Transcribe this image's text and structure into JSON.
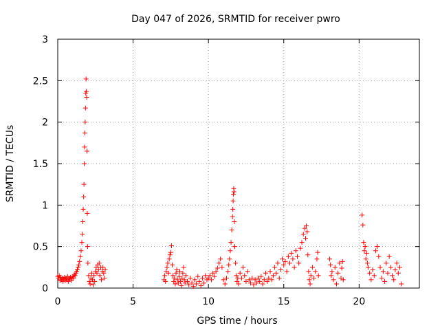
{
  "chart_data": {
    "type": "scatter",
    "title": "Day 047 of 2026, SRMTID for receiver pwro",
    "xlabel": "GPS time / hours",
    "ylabel": "SRMTID / TECUs",
    "xlim": [
      0,
      24
    ],
    "ylim": [
      0,
      3
    ],
    "xticks": [
      "0",
      "5",
      "10",
      "15",
      "20"
    ],
    "yticks": [
      "0",
      "0.5",
      "1",
      "1.5",
      "2",
      "2.5",
      "3"
    ],
    "grid": true,
    "marker": "+",
    "series": [
      {
        "name": "pwro",
        "color": "#ff0000",
        "points": [
          [
            0.0,
            0.14
          ],
          [
            0.05,
            0.12
          ],
          [
            0.1,
            0.15
          ],
          [
            0.15,
            0.09
          ],
          [
            0.2,
            0.13
          ],
          [
            0.25,
            0.1
          ],
          [
            0.3,
            0.12
          ],
          [
            0.35,
            0.08
          ],
          [
            0.4,
            0.11
          ],
          [
            0.45,
            0.13
          ],
          [
            0.5,
            0.09
          ],
          [
            0.55,
            0.12
          ],
          [
            0.6,
            0.1
          ],
          [
            0.65,
            0.14
          ],
          [
            0.7,
            0.08
          ],
          [
            0.75,
            0.12
          ],
          [
            0.8,
            0.11
          ],
          [
            0.85,
            0.13
          ],
          [
            0.9,
            0.09
          ],
          [
            0.95,
            0.12
          ],
          [
            1.0,
            0.14
          ],
          [
            1.05,
            0.12
          ],
          [
            1.1,
            0.16
          ],
          [
            1.15,
            0.15
          ],
          [
            1.2,
            0.18
          ],
          [
            1.25,
            0.2
          ],
          [
            1.3,
            0.22
          ],
          [
            1.35,
            0.25
          ],
          [
            1.4,
            0.28
          ],
          [
            1.45,
            0.32
          ],
          [
            1.5,
            0.38
          ],
          [
            1.55,
            0.45
          ],
          [
            1.6,
            0.55
          ],
          [
            1.63,
            0.65
          ],
          [
            1.66,
            0.8
          ],
          [
            1.69,
            0.95
          ],
          [
            1.72,
            1.1
          ],
          [
            1.74,
            1.25
          ],
          [
            1.76,
            1.5
          ],
          [
            1.78,
            1.7
          ],
          [
            1.8,
            1.87
          ],
          [
            1.82,
            2.0
          ],
          [
            1.84,
            2.17
          ],
          [
            1.86,
            2.35
          ],
          [
            1.88,
            2.52
          ],
          [
            1.9,
            2.37
          ],
          [
            1.92,
            2.3
          ],
          [
            1.94,
            1.65
          ],
          [
            1.96,
            0.9
          ],
          [
            1.98,
            0.5
          ],
          [
            2.0,
            0.3
          ],
          [
            2.05,
            0.15
          ],
          [
            2.1,
            0.08
          ],
          [
            2.15,
            0.05
          ],
          [
            2.2,
            0.12
          ],
          [
            2.25,
            0.18
          ],
          [
            2.3,
            0.1
          ],
          [
            2.35,
            0.04
          ],
          [
            2.4,
            0.15
          ],
          [
            2.45,
            0.08
          ],
          [
            2.5,
            0.2
          ],
          [
            2.55,
            0.25
          ],
          [
            2.6,
            0.18
          ],
          [
            2.65,
            0.28
          ],
          [
            2.7,
            0.22
          ],
          [
            2.75,
            0.3
          ],
          [
            2.8,
            0.15
          ],
          [
            2.85,
            0.25
          ],
          [
            2.9,
            0.1
          ],
          [
            2.95,
            0.2
          ],
          [
            3.0,
            0.25
          ],
          [
            3.05,
            0.18
          ],
          [
            3.1,
            0.12
          ],
          [
            3.15,
            0.22
          ],
          [
            7.05,
            0.1
          ],
          [
            7.1,
            0.15
          ],
          [
            7.15,
            0.08
          ],
          [
            7.2,
            0.2
          ],
          [
            7.25,
            0.25
          ],
          [
            7.3,
            0.3
          ],
          [
            7.35,
            0.18
          ],
          [
            7.4,
            0.35
          ],
          [
            7.45,
            0.4
          ],
          [
            7.5,
            0.43
          ],
          [
            7.55,
            0.51
          ],
          [
            7.6,
            0.28
          ],
          [
            7.65,
            0.15
          ],
          [
            7.7,
            0.08
          ],
          [
            7.75,
            0.12
          ],
          [
            7.8,
            0.05
          ],
          [
            7.85,
            0.18
          ],
          [
            7.9,
            0.22
          ],
          [
            7.95,
            0.1
          ],
          [
            8.0,
            0.06
          ],
          [
            8.05,
            0.14
          ],
          [
            8.1,
            0.2
          ],
          [
            8.15,
            0.08
          ],
          [
            8.2,
            0.03
          ],
          [
            8.25,
            0.12
          ],
          [
            8.3,
            0.18
          ],
          [
            8.35,
            0.25
          ],
          [
            8.4,
            0.1
          ],
          [
            8.45,
            0.06
          ],
          [
            8.5,
            0.15
          ],
          [
            8.6,
            0.08
          ],
          [
            8.7,
            0.04
          ],
          [
            8.8,
            0.12
          ],
          [
            8.9,
            0.06
          ],
          [
            9.0,
            0.02
          ],
          [
            9.1,
            0.1
          ],
          [
            9.2,
            0.05
          ],
          [
            9.3,
            0.14
          ],
          [
            9.4,
            0.08
          ],
          [
            9.5,
            0.03
          ],
          [
            9.6,
            0.12
          ],
          [
            9.7,
            0.06
          ],
          [
            9.8,
            0.15
          ],
          [
            9.9,
            0.1
          ],
          [
            10.0,
            0.12
          ],
          [
            10.1,
            0.15
          ],
          [
            10.2,
            0.1
          ],
          [
            10.3,
            0.18
          ],
          [
            10.4,
            0.14
          ],
          [
            10.5,
            0.2
          ],
          [
            10.6,
            0.24
          ],
          [
            10.7,
            0.3
          ],
          [
            10.8,
            0.35
          ],
          [
            10.9,
            0.25
          ],
          [
            11.0,
            0.1
          ],
          [
            11.1,
            0.05
          ],
          [
            11.2,
            0.12
          ],
          [
            11.3,
            0.2
          ],
          [
            11.35,
            0.28
          ],
          [
            11.4,
            0.35
          ],
          [
            11.45,
            0.45
          ],
          [
            11.5,
            0.55
          ],
          [
            11.55,
            0.7
          ],
          [
            11.6,
            0.86
          ],
          [
            11.62,
            0.95
          ],
          [
            11.64,
            1.05
          ],
          [
            11.66,
            1.13
          ],
          [
            11.68,
            1.2
          ],
          [
            11.7,
            1.16
          ],
          [
            11.72,
            0.8
          ],
          [
            11.75,
            0.5
          ],
          [
            11.8,
            0.3
          ],
          [
            11.85,
            0.15
          ],
          [
            11.9,
            0.08
          ],
          [
            11.95,
            0.12
          ],
          [
            12.0,
            0.05
          ],
          [
            12.1,
            0.18
          ],
          [
            12.2,
            0.12
          ],
          [
            12.3,
            0.25
          ],
          [
            12.4,
            0.15
          ],
          [
            12.5,
            0.08
          ],
          [
            12.6,
            0.2
          ],
          [
            12.7,
            0.1
          ],
          [
            12.8,
            0.06
          ],
          [
            12.9,
            0.12
          ],
          [
            13.0,
            0.04
          ],
          [
            13.1,
            0.1
          ],
          [
            13.2,
            0.06
          ],
          [
            13.3,
            0.12
          ],
          [
            13.4,
            0.08
          ],
          [
            13.5,
            0.14
          ],
          [
            13.6,
            0.05
          ],
          [
            13.7,
            0.1
          ],
          [
            13.8,
            0.18
          ],
          [
            13.9,
            0.08
          ],
          [
            14.0,
            0.12
          ],
          [
            14.1,
            0.2
          ],
          [
            14.2,
            0.1
          ],
          [
            14.3,
            0.15
          ],
          [
            14.4,
            0.25
          ],
          [
            14.5,
            0.18
          ],
          [
            14.6,
            0.3
          ],
          [
            14.7,
            0.12
          ],
          [
            14.8,
            0.22
          ],
          [
            14.9,
            0.35
          ],
          [
            15.0,
            0.28
          ],
          [
            15.1,
            0.32
          ],
          [
            15.2,
            0.2
          ],
          [
            15.3,
            0.38
          ],
          [
            15.4,
            0.3
          ],
          [
            15.5,
            0.42
          ],
          [
            15.6,
            0.35
          ],
          [
            15.7,
            0.25
          ],
          [
            15.8,
            0.45
          ],
          [
            15.9,
            0.38
          ],
          [
            16.0,
            0.3
          ],
          [
            16.1,
            0.48
          ],
          [
            16.2,
            0.55
          ],
          [
            16.3,
            0.65
          ],
          [
            16.4,
            0.72
          ],
          [
            16.45,
            0.6
          ],
          [
            16.5,
            0.75
          ],
          [
            16.55,
            0.68
          ],
          [
            16.6,
            0.4
          ],
          [
            16.65,
            0.2
          ],
          [
            16.7,
            0.1
          ],
          [
            16.75,
            0.05
          ],
          [
            16.8,
            0.15
          ],
          [
            16.9,
            0.25
          ],
          [
            17.0,
            0.12
          ],
          [
            17.1,
            0.2
          ],
          [
            17.2,
            0.35
          ],
          [
            17.25,
            0.43
          ],
          [
            17.3,
            0.15
          ],
          [
            18.05,
            0.35
          ],
          [
            18.1,
            0.28
          ],
          [
            18.15,
            0.15
          ],
          [
            18.2,
            0.2
          ],
          [
            18.3,
            0.1
          ],
          [
            18.4,
            0.25
          ],
          [
            18.5,
            0.05
          ],
          [
            18.6,
            0.18
          ],
          [
            18.7,
            0.3
          ],
          [
            18.8,
            0.12
          ],
          [
            18.85,
            0.24
          ],
          [
            18.9,
            0.32
          ],
          [
            18.95,
            0.1
          ],
          [
            20.2,
            0.88
          ],
          [
            20.25,
            0.76
          ],
          [
            20.3,
            0.55
          ],
          [
            20.35,
            0.45
          ],
          [
            20.4,
            0.5
          ],
          [
            20.45,
            0.35
          ],
          [
            20.5,
            0.42
          ],
          [
            20.55,
            0.3
          ],
          [
            20.6,
            0.25
          ],
          [
            20.7,
            0.18
          ],
          [
            20.8,
            0.1
          ],
          [
            20.9,
            0.22
          ],
          [
            21.0,
            0.15
          ],
          [
            21.1,
            0.45
          ],
          [
            21.2,
            0.5
          ],
          [
            21.3,
            0.38
          ],
          [
            21.4,
            0.25
          ],
          [
            21.5,
            0.12
          ],
          [
            21.6,
            0.2
          ],
          [
            21.7,
            0.08
          ],
          [
            21.8,
            0.3
          ],
          [
            21.9,
            0.18
          ],
          [
            22.0,
            0.38
          ],
          [
            22.1,
            0.25
          ],
          [
            22.2,
            0.15
          ],
          [
            22.3,
            0.1
          ],
          [
            22.4,
            0.22
          ],
          [
            22.5,
            0.3
          ],
          [
            22.6,
            0.18
          ],
          [
            22.7,
            0.25
          ],
          [
            22.8,
            0.05
          ]
        ]
      }
    ]
  }
}
